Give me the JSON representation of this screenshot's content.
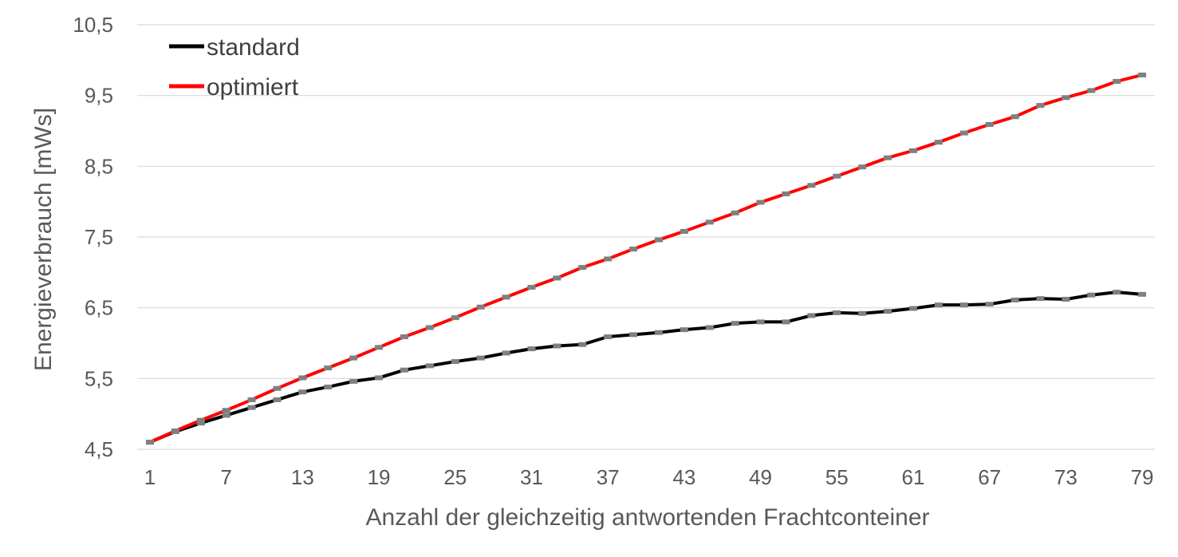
{
  "chart_data": {
    "type": "line",
    "title": "",
    "xlabel": "Anzahl der gleichzeitig antwortenden Frachtconteiner",
    "ylabel": "Energieverbrauch [mWs]",
    "ylim": [
      4.5,
      10.5
    ],
    "yticks": [
      "4,5",
      "5,5",
      "6,5",
      "7,5",
      "8,5",
      "9,5",
      "10,5"
    ],
    "ytick_values": [
      4.5,
      5.5,
      6.5,
      7.5,
      8.5,
      9.5,
      10.5
    ],
    "xtick_labels": [
      "1",
      "7",
      "13",
      "19",
      "25",
      "31",
      "37",
      "43",
      "49",
      "55",
      "61",
      "67",
      "73",
      "79"
    ],
    "grid": true,
    "legend_position": "top-left",
    "x": [
      1,
      3,
      5,
      7,
      9,
      11,
      13,
      15,
      17,
      19,
      21,
      23,
      25,
      27,
      29,
      31,
      33,
      35,
      37,
      39,
      41,
      43,
      45,
      47,
      49,
      51,
      53,
      55,
      57,
      59,
      61,
      63,
      65,
      67,
      69,
      71,
      73,
      75,
      77,
      79
    ],
    "series": [
      {
        "name": "standard",
        "color": "#000000",
        "values": [
          4.6,
          4.75,
          4.87,
          4.98,
          5.09,
          5.2,
          5.31,
          5.38,
          5.46,
          5.51,
          5.62,
          5.68,
          5.74,
          5.79,
          5.86,
          5.92,
          5.96,
          5.98,
          6.09,
          6.12,
          6.15,
          6.19,
          6.22,
          6.28,
          6.3,
          6.3,
          6.39,
          6.43,
          6.42,
          6.45,
          6.49,
          6.54,
          6.54,
          6.55,
          6.61,
          6.63,
          6.62,
          6.68,
          6.72,
          6.69
        ]
      },
      {
        "name": "optimiert",
        "color": "#ff0000",
        "values": [
          4.6,
          4.76,
          4.91,
          5.05,
          5.2,
          5.36,
          5.51,
          5.65,
          5.79,
          5.94,
          6.09,
          6.22,
          6.36,
          6.51,
          6.65,
          6.79,
          6.92,
          7.07,
          7.19,
          7.33,
          7.46,
          7.58,
          7.71,
          7.84,
          7.99,
          8.11,
          8.23,
          8.36,
          8.49,
          8.62,
          8.72,
          8.84,
          8.97,
          9.09,
          9.2,
          9.36,
          9.47,
          9.57,
          9.7,
          9.79
        ]
      }
    ]
  }
}
